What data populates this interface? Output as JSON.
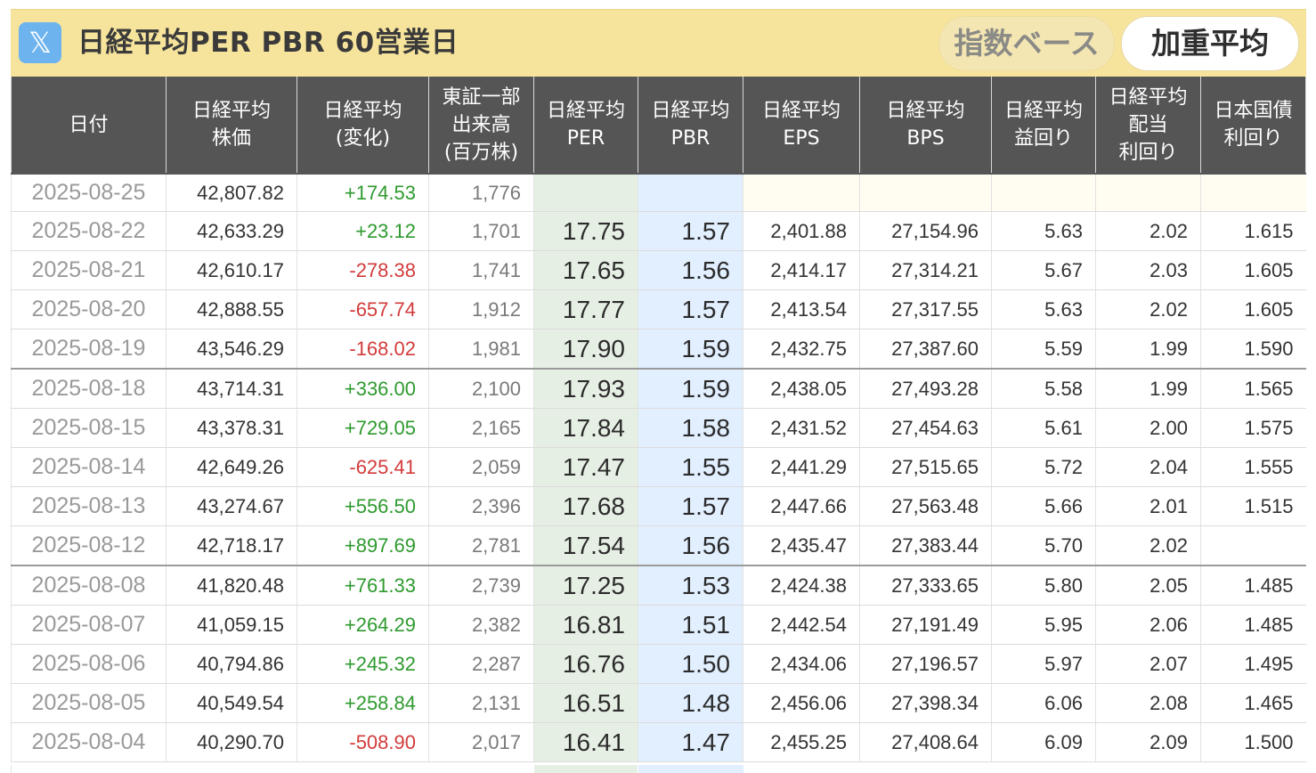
{
  "header": {
    "logo_glyph": "𝕏",
    "logo_icon": "x-twitter-icon",
    "title": "日経平均PER PBR 60営業日",
    "buttons": {
      "index_base": "指数ベース",
      "weighted_avg": "加重平均"
    }
  },
  "table": {
    "columns": [
      [
        "日付"
      ],
      [
        "日経平均",
        "株価"
      ],
      [
        "日経平均",
        "(変化)"
      ],
      [
        "東証一部",
        "出来高",
        "(百万株)"
      ],
      [
        "日経平均",
        "PER"
      ],
      [
        "日経平均",
        "PBR"
      ],
      [
        "日経平均",
        "EPS"
      ],
      [
        "日経平均",
        "BPS"
      ],
      [
        "日経平均",
        "益回り"
      ],
      [
        "日経平均",
        "配当",
        "利回り"
      ],
      [
        "日本国債",
        "利回り"
      ]
    ],
    "rows": [
      {
        "date": "2025-08-25",
        "price": "42,807.82",
        "change": "+174.53",
        "volume": "1,776",
        "per": "",
        "pbr": "",
        "eps": "",
        "bps": "",
        "earnings_yield": "",
        "dividend_yield": "",
        "jgb_yield": ""
      },
      {
        "date": "2025-08-22",
        "price": "42,633.29",
        "change": "+23.12",
        "volume": "1,701",
        "per": "17.75",
        "pbr": "1.57",
        "eps": "2,401.88",
        "bps": "27,154.96",
        "earnings_yield": "5.63",
        "dividend_yield": "2.02",
        "jgb_yield": "1.615"
      },
      {
        "date": "2025-08-21",
        "price": "42,610.17",
        "change": "-278.38",
        "volume": "1,741",
        "per": "17.65",
        "pbr": "1.56",
        "eps": "2,414.17",
        "bps": "27,314.21",
        "earnings_yield": "5.67",
        "dividend_yield": "2.03",
        "jgb_yield": "1.605"
      },
      {
        "date": "2025-08-20",
        "price": "42,888.55",
        "change": "-657.74",
        "volume": "1,912",
        "per": "17.77",
        "pbr": "1.57",
        "eps": "2,413.54",
        "bps": "27,317.55",
        "earnings_yield": "5.63",
        "dividend_yield": "2.02",
        "jgb_yield": "1.605"
      },
      {
        "date": "2025-08-19",
        "price": "43,546.29",
        "change": "-168.02",
        "volume": "1,981",
        "per": "17.90",
        "pbr": "1.59",
        "eps": "2,432.75",
        "bps": "27,387.60",
        "earnings_yield": "5.59",
        "dividend_yield": "1.99",
        "jgb_yield": "1.590"
      },
      {
        "date": "2025-08-18",
        "price": "43,714.31",
        "change": "+336.00",
        "volume": "2,100",
        "per": "17.93",
        "pbr": "1.59",
        "eps": "2,438.05",
        "bps": "27,493.28",
        "earnings_yield": "5.58",
        "dividend_yield": "1.99",
        "jgb_yield": "1.565"
      },
      {
        "date": "2025-08-15",
        "price": "43,378.31",
        "change": "+729.05",
        "volume": "2,165",
        "per": "17.84",
        "pbr": "1.58",
        "eps": "2,431.52",
        "bps": "27,454.63",
        "earnings_yield": "5.61",
        "dividend_yield": "2.00",
        "jgb_yield": "1.575"
      },
      {
        "date": "2025-08-14",
        "price": "42,649.26",
        "change": "-625.41",
        "volume": "2,059",
        "per": "17.47",
        "pbr": "1.55",
        "eps": "2,441.29",
        "bps": "27,515.65",
        "earnings_yield": "5.72",
        "dividend_yield": "2.04",
        "jgb_yield": "1.555"
      },
      {
        "date": "2025-08-13",
        "price": "43,274.67",
        "change": "+556.50",
        "volume": "2,396",
        "per": "17.68",
        "pbr": "1.57",
        "eps": "2,447.66",
        "bps": "27,563.48",
        "earnings_yield": "5.66",
        "dividend_yield": "2.01",
        "jgb_yield": "1.515"
      },
      {
        "date": "2025-08-12",
        "price": "42,718.17",
        "change": "+897.69",
        "volume": "2,781",
        "per": "17.54",
        "pbr": "1.56",
        "eps": "2,435.47",
        "bps": "27,383.44",
        "earnings_yield": "5.70",
        "dividend_yield": "2.02",
        "jgb_yield": ""
      },
      {
        "date": "2025-08-08",
        "price": "41,820.48",
        "change": "+761.33",
        "volume": "2,739",
        "per": "17.25",
        "pbr": "1.53",
        "eps": "2,424.38",
        "bps": "27,333.65",
        "earnings_yield": "5.80",
        "dividend_yield": "2.05",
        "jgb_yield": "1.485"
      },
      {
        "date": "2025-08-07",
        "price": "41,059.15",
        "change": "+264.29",
        "volume": "2,382",
        "per": "16.81",
        "pbr": "1.51",
        "eps": "2,442.54",
        "bps": "27,191.49",
        "earnings_yield": "5.95",
        "dividend_yield": "2.06",
        "jgb_yield": "1.485"
      },
      {
        "date": "2025-08-06",
        "price": "40,794.86",
        "change": "+245.32",
        "volume": "2,287",
        "per": "16.76",
        "pbr": "1.50",
        "eps": "2,434.06",
        "bps": "27,196.57",
        "earnings_yield": "5.97",
        "dividend_yield": "2.07",
        "jgb_yield": "1.495"
      },
      {
        "date": "2025-08-05",
        "price": "40,549.54",
        "change": "+258.84",
        "volume": "2,131",
        "per": "16.51",
        "pbr": "1.48",
        "eps": "2,456.06",
        "bps": "27,398.34",
        "earnings_yield": "6.06",
        "dividend_yield": "2.08",
        "jgb_yield": "1.465"
      },
      {
        "date": "2025-08-04",
        "price": "40,290.70",
        "change": "-508.90",
        "volume": "2,017",
        "per": "16.41",
        "pbr": "1.47",
        "eps": "2,455.25",
        "bps": "27,408.64",
        "earnings_yield": "6.09",
        "dividend_yield": "2.09",
        "jgb_yield": "1.500"
      }
    ]
  },
  "colors": {
    "header_bar": "#f7e49c",
    "table_header": "#555555",
    "positive": "#2e9a2e",
    "negative": "#d23b3b",
    "per_column": "#e6efe4",
    "pbr_column": "#e2efff"
  }
}
